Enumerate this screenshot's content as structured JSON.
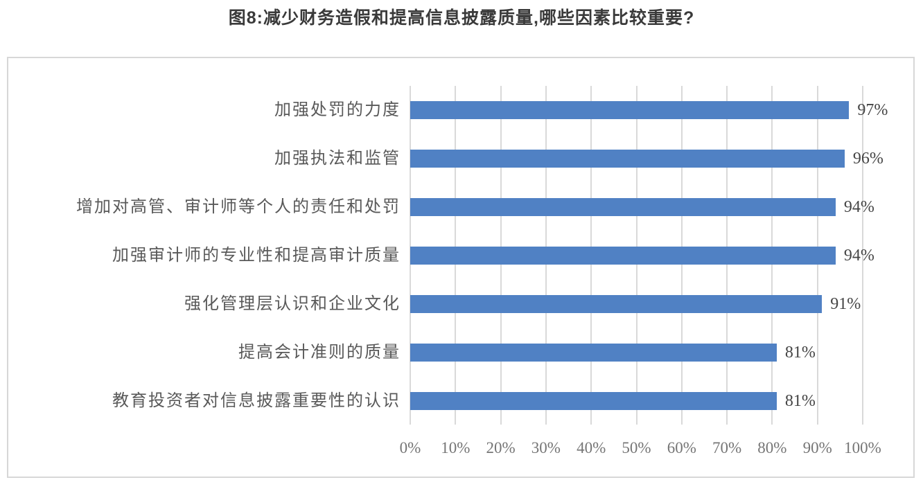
{
  "page": {
    "title": "图8:减少财务造假和提高信息披露质量,哪些因素比较重要?"
  },
  "chart_data": {
    "type": "bar",
    "orientation": "horizontal",
    "title": "图8:减少财务造假和提高信息披露质量,哪些因素比较重要?",
    "categories": [
      "加强处罚的力度",
      "加强执法和监管",
      "增加对高管、审计师等个人的责任和处罚",
      "加强审计师的专业性和提高审计质量",
      "强化管理层认识和企业文化",
      "提高会计准则的质量",
      "教育投资者对信息披露重要性的认识"
    ],
    "values": [
      97,
      96,
      94,
      94,
      91,
      81,
      81
    ],
    "value_labels": [
      "97%",
      "96%",
      "94%",
      "94%",
      "91%",
      "81%",
      "81%"
    ],
    "xlabel": "",
    "ylabel": "",
    "xlim": [
      0,
      100
    ],
    "x_tick_step": 10,
    "x_tick_labels": [
      "0%",
      "10%",
      "20%",
      "30%",
      "40%",
      "50%",
      "60%",
      "70%",
      "80%",
      "90%",
      "100%"
    ],
    "legend": "none",
    "grid": "vertical-only",
    "data_labels": "outside-end",
    "colors": {
      "bar": "#5081c4",
      "grid": "#d9d9d9",
      "frame_border": "#d7d7d7",
      "title_text": "#3a3a3a",
      "category_text": "#595959",
      "value_text": "#444444",
      "tick_text": "#757575",
      "background": "#ffffff"
    }
  }
}
